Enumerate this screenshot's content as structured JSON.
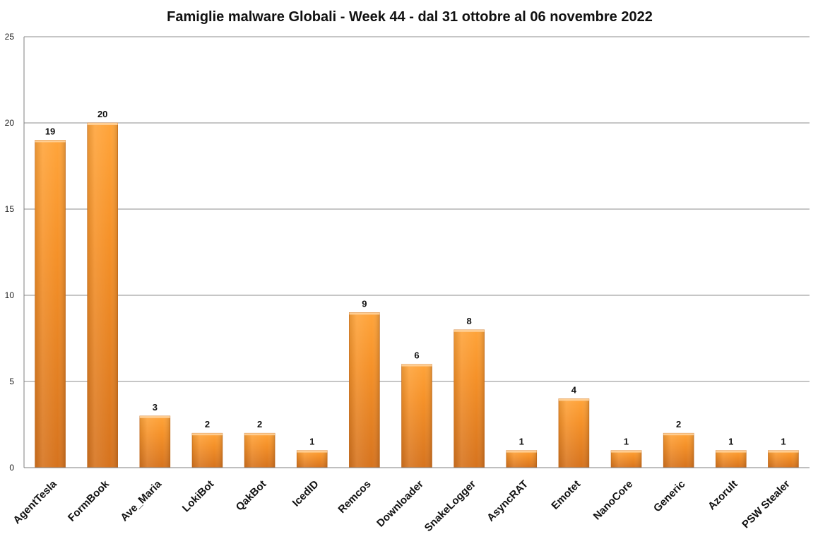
{
  "chart_data": {
    "type": "bar",
    "title": "Famiglie malware Globali - Week 44 - dal 31 ottobre al 06 novembre  2022",
    "xlabel": "",
    "ylabel": "",
    "categories": [
      "AgentTesla",
      "FormBook",
      "Ave_Maria",
      "LokiBot",
      "QakBot",
      "IcedID",
      "Remcos",
      "Downloader",
      "SnakeLogger",
      "AsyncRAT",
      "Emotet",
      "NanoCore",
      "Generic",
      "Azorult",
      "PSW Stealer"
    ],
    "values": [
      19,
      20,
      3,
      2,
      2,
      1,
      9,
      6,
      8,
      1,
      4,
      1,
      2,
      1,
      1
    ],
    "ylim": [
      0,
      25
    ],
    "yticks": [
      0,
      5,
      10,
      15,
      20,
      25
    ],
    "grid": true,
    "legend": "none",
    "data_labels": true,
    "colors": {
      "bar_light": "#ffa43a",
      "bar_mid": "#f59128",
      "bar_dark": "#d6731e",
      "gridline": "#8c8c8c",
      "axis": "#7f7f7f"
    }
  }
}
